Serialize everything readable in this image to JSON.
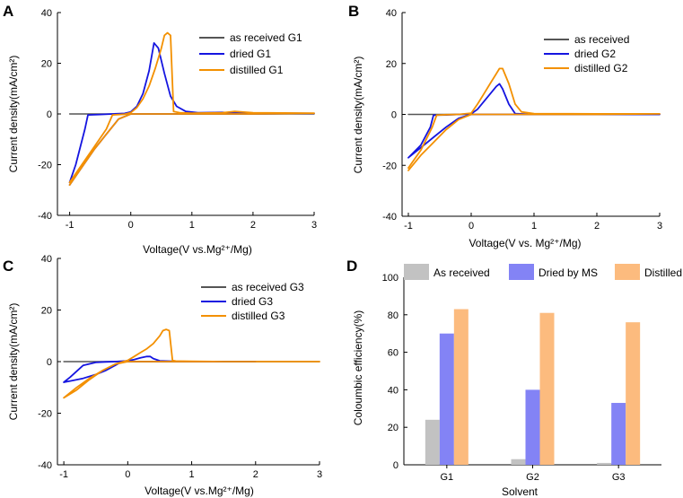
{
  "chart_data": [
    {
      "type": "line",
      "panel": "A",
      "xlabel": "Voltage(V vs.Mg²⁺/Mg)",
      "ylabel": "Current density(mA/cm²)",
      "xlim": [
        -1.2,
        3
      ],
      "ylim": [
        -40,
        40
      ],
      "xticks": [
        -1,
        0,
        1,
        2,
        3
      ],
      "yticks": [
        -40,
        -20,
        0,
        20,
        40
      ],
      "legend_position": "top-right",
      "series": [
        {
          "name": "as received G1",
          "color": "#555555",
          "x": [
            -1.0,
            0.0,
            1.0,
            2.0,
            3.0
          ],
          "y": [
            0,
            0,
            0,
            0,
            0
          ]
        },
        {
          "name": "dried G1",
          "color": "#1515e0",
          "x": [
            -1.0,
            -0.9,
            -0.75,
            -0.7,
            -0.5,
            -0.3,
            -0.1,
            0.0,
            0.1,
            0.2,
            0.3,
            0.38,
            0.45,
            0.55,
            0.65,
            0.75,
            0.9,
            1.1,
            1.5,
            2.0,
            3.0,
            2.0,
            1.0,
            0.0,
            -0.2,
            -0.4,
            -0.6,
            -0.8,
            -1.0
          ],
          "y": [
            -27,
            -20,
            -6,
            -0.4,
            -0.2,
            0,
            0.2,
            0.8,
            3,
            8,
            17,
            28,
            26,
            16,
            7,
            3,
            1,
            0.5,
            0.6,
            0.3,
            0.2,
            0,
            0,
            0,
            -2,
            -8,
            -14,
            -21,
            -28
          ]
        },
        {
          "name": "distilled G1",
          "color": "#f39000",
          "x": [
            -1.0,
            -0.8,
            -0.6,
            -0.4,
            -0.3,
            -0.1,
            0.0,
            0.1,
            0.2,
            0.3,
            0.4,
            0.5,
            0.55,
            0.6,
            0.65,
            0.7,
            0.8,
            1.0,
            1.5,
            1.7,
            2.0,
            3.0,
            2.0,
            1.0,
            0.5,
            0.0,
            -0.2,
            -0.4,
            -0.6,
            -0.8,
            -1.0
          ],
          "y": [
            -27,
            -20,
            -13,
            -6,
            -0.4,
            -0.1,
            0.5,
            2.5,
            6,
            11,
            18,
            26,
            31,
            32,
            31,
            1,
            0.5,
            0.3,
            0.5,
            1,
            0.5,
            0.3,
            0,
            0,
            0,
            0,
            -2,
            -8,
            -14,
            -21,
            -28
          ]
        }
      ]
    },
    {
      "type": "line",
      "panel": "B",
      "xlabel": "Voltage(V vs. Mg²⁺/Mg)",
      "ylabel": "Current density(mA/cm²)",
      "xlim": [
        -1.1,
        3
      ],
      "ylim": [
        -40,
        40
      ],
      "xticks": [
        -1,
        0,
        1,
        2,
        3
      ],
      "yticks": [
        -40,
        -20,
        0,
        20,
        40
      ],
      "legend_position": "top-right",
      "series": [
        {
          "name": "as received",
          "color": "#555555",
          "x": [
            -1.0,
            0.0,
            1.0,
            2.0,
            3.0
          ],
          "y": [
            0,
            0,
            0,
            0,
            0
          ]
        },
        {
          "name": "dried G2",
          "color": "#1515e0",
          "x": [
            -1.0,
            -0.8,
            -0.65,
            -0.6,
            -0.4,
            -0.2,
            0.0,
            0.1,
            0.2,
            0.3,
            0.4,
            0.45,
            0.5,
            0.6,
            0.7,
            1.0,
            2.0,
            3.0,
            2.0,
            1.0,
            0.0,
            -0.2,
            -0.4,
            -0.6,
            -0.8,
            -1.0
          ],
          "y": [
            -17,
            -12,
            -5,
            -0.3,
            -0.2,
            0,
            0.2,
            2,
            5,
            8,
            11,
            12,
            10,
            4,
            0.3,
            0,
            0,
            0,
            0,
            0,
            0,
            -1.5,
            -5,
            -9,
            -13,
            -17
          ]
        },
        {
          "name": "distilled G2",
          "color": "#f39000",
          "x": [
            -1.0,
            -0.8,
            -0.62,
            -0.55,
            -0.4,
            -0.2,
            0.0,
            0.1,
            0.2,
            0.3,
            0.4,
            0.45,
            0.5,
            0.6,
            0.7,
            0.8,
            1.0,
            2.0,
            3.0,
            2.0,
            1.0,
            0.0,
            -0.2,
            -0.4,
            -0.6,
            -0.8,
            -1.0
          ],
          "y": [
            -21,
            -14,
            -5,
            -0.3,
            -0.1,
            0,
            0.5,
            4,
            8,
            12,
            16,
            18,
            18,
            12,
            4,
            1,
            0.3,
            0.2,
            0.2,
            0,
            0,
            0,
            -2,
            -6,
            -11,
            -16,
            -22
          ]
        }
      ]
    },
    {
      "type": "line",
      "panel": "C",
      "xlabel": "Voltage(V vs.Mg²⁺/Mg)",
      "ylabel": "Current density(mA/cm²)",
      "xlim": [
        -1.1,
        3
      ],
      "ylim": [
        -40,
        40
      ],
      "xticks": [
        -1,
        0,
        1,
        2,
        3
      ],
      "yticks": [
        -40,
        -20,
        0,
        20,
        40
      ],
      "legend_position": "top-right",
      "series": [
        {
          "name": "as received G3",
          "color": "#555555",
          "x": [
            -1.0,
            0.0,
            1.0,
            2.0,
            3.0
          ],
          "y": [
            0,
            0,
            0,
            0,
            0
          ]
        },
        {
          "name": "dried G3",
          "color": "#1515e0",
          "x": [
            -1.0,
            -0.9,
            -0.7,
            -0.5,
            -0.35,
            -0.2,
            0.0,
            0.1,
            0.2,
            0.3,
            0.35,
            0.4,
            0.5,
            0.7,
            1.0,
            1.5,
            2.0,
            1.5,
            1.0,
            0.5,
            0.0,
            -0.1,
            -0.2,
            -0.35,
            -0.5,
            -0.7,
            -0.9,
            -1.0
          ],
          "y": [
            -8,
            -6,
            -1.5,
            -0.3,
            -0.1,
            0,
            0.3,
            0.8,
            1.5,
            2,
            2,
            1.2,
            0.3,
            0.1,
            0,
            0,
            0,
            0,
            0,
            0,
            0,
            -0.1,
            -1.5,
            -3.5,
            -5,
            -6.5,
            -7.5,
            -8
          ]
        },
        {
          "name": "distilled G3",
          "color": "#f39000",
          "x": [
            -1.0,
            -0.8,
            -0.6,
            -0.4,
            -0.2,
            0.0,
            0.1,
            0.2,
            0.3,
            0.4,
            0.5,
            0.55,
            0.6,
            0.65,
            0.7,
            0.75,
            1.0,
            1.5,
            2.0,
            3.0,
            2.0,
            1.0,
            0.0,
            -0.2,
            -0.4,
            -0.6,
            -0.8,
            -1.0
          ],
          "y": [
            -14,
            -10,
            -6.5,
            -3.5,
            -1,
            0.5,
            2,
            3.5,
            5,
            7,
            10,
            12,
            12.5,
            12,
            0.5,
            0.2,
            0.1,
            0,
            0,
            0,
            0,
            0,
            0,
            -1,
            -3.5,
            -7,
            -11,
            -14
          ]
        }
      ]
    },
    {
      "type": "bar",
      "panel": "D",
      "title": "",
      "xlabel": "Solvent",
      "ylabel": "Coloumbic efficiency(%)",
      "categories": [
        "G1",
        "G2",
        "G3"
      ],
      "ylim": [
        0,
        100
      ],
      "yticks": [
        0,
        20,
        40,
        60,
        80,
        100
      ],
      "legend_position": "top",
      "series": [
        {
          "name": "As received",
          "color": "#c2c2c2",
          "values": [
            24,
            3,
            1
          ]
        },
        {
          "name": "Dried by MS",
          "color": "#8383f5",
          "values": [
            70,
            40,
            33
          ]
        },
        {
          "name": "Distilled",
          "color": "#fcbb7e",
          "values": [
            83,
            81,
            76
          ]
        }
      ]
    }
  ]
}
